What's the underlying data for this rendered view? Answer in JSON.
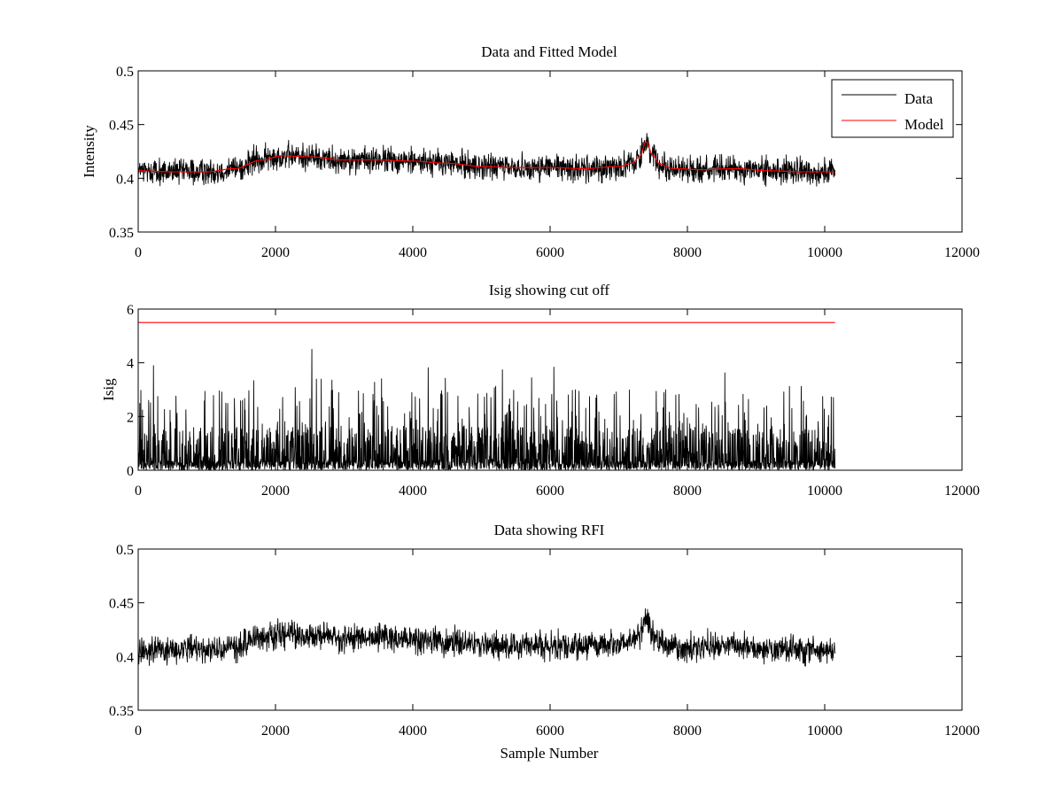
{
  "chart_data": [
    {
      "type": "line",
      "title": "Data and Fitted Model",
      "xlabel": "",
      "ylabel": "Intensity",
      "xlim": [
        0,
        12000
      ],
      "ylim": [
        0.35,
        0.5
      ],
      "xticks": [
        0,
        2000,
        4000,
        6000,
        8000,
        10000,
        12000
      ],
      "xtick_labels": [
        "0",
        "2000",
        "4000",
        "6000",
        "8000",
        "10000",
        "12000"
      ],
      "yticks": [
        0.35,
        0.4,
        0.45,
        0.5
      ],
      "ytick_labels": [
        "0.35",
        "0.4",
        "0.45",
        "0.5"
      ],
      "grid": false,
      "legend": {
        "position": "top-right",
        "entries": [
          "Data",
          "Model"
        ]
      },
      "series": [
        {
          "name": "Data",
          "color": "#000000",
          "style": "noisy",
          "x": [
            0,
            500,
            1000,
            1400,
            1800,
            2100,
            2500,
            3000,
            3500,
            4000,
            4500,
            5000,
            5500,
            6000,
            6500,
            7000,
            7200,
            7300,
            7400,
            7500,
            7600,
            7800,
            8200,
            8700,
            9200,
            9700,
            10150
          ],
          "y": [
            0.407,
            0.406,
            0.406,
            0.409,
            0.417,
            0.421,
            0.42,
            0.417,
            0.417,
            0.416,
            0.414,
            0.411,
            0.41,
            0.41,
            0.409,
            0.411,
            0.414,
            0.42,
            0.434,
            0.421,
            0.413,
            0.409,
            0.408,
            0.409,
            0.407,
            0.406,
            0.406
          ],
          "noise_amplitude": 0.006,
          "x_range": [
            0,
            10150
          ]
        },
        {
          "name": "Model",
          "color": "#ff0000",
          "style": "smooth",
          "x": [
            0,
            500,
            1000,
            1400,
            1800,
            2100,
            2500,
            3000,
            3500,
            4000,
            4500,
            5000,
            5500,
            6000,
            6500,
            7000,
            7200,
            7300,
            7400,
            7500,
            7600,
            7800,
            8200,
            8700,
            9200,
            9700,
            10150
          ],
          "y": [
            0.407,
            0.406,
            0.406,
            0.409,
            0.417,
            0.421,
            0.42,
            0.417,
            0.417,
            0.416,
            0.414,
            0.411,
            0.41,
            0.41,
            0.409,
            0.411,
            0.414,
            0.42,
            0.434,
            0.421,
            0.413,
            0.409,
            0.408,
            0.409,
            0.407,
            0.406,
            0.406
          ],
          "x_range": [
            0,
            10150
          ]
        }
      ]
    },
    {
      "type": "line",
      "title": "Isig showing cut off",
      "xlabel": "",
      "ylabel": "Isig",
      "xlim": [
        0,
        12000
      ],
      "ylim": [
        0,
        6
      ],
      "xticks": [
        0,
        2000,
        4000,
        6000,
        8000,
        10000,
        12000
      ],
      "xtick_labels": [
        "0",
        "2000",
        "4000",
        "6000",
        "8000",
        "10000",
        "12000"
      ],
      "yticks": [
        0,
        2,
        4,
        6
      ],
      "ytick_labels": [
        "0",
        "2",
        "4",
        "6"
      ],
      "grid": false,
      "series": [
        {
          "color": "#000000",
          "style": "spiky",
          "x_range": [
            0,
            10150
          ],
          "typical_max": 3.0,
          "peak": {
            "x": 2530,
            "y": 4.5
          }
        },
        {
          "color": "#ff0000",
          "style": "constant",
          "x": [
            0,
            10150
          ],
          "y": [
            5.5,
            5.5
          ]
        }
      ]
    },
    {
      "type": "line",
      "title": "Data showing RFI",
      "xlabel": "Sample Number",
      "ylabel": "",
      "xlim": [
        0,
        12000
      ],
      "ylim": [
        0.35,
        0.5
      ],
      "xticks": [
        0,
        2000,
        4000,
        6000,
        8000,
        10000,
        12000
      ],
      "xtick_labels": [
        "0",
        "2000",
        "4000",
        "6000",
        "8000",
        "10000",
        "12000"
      ],
      "yticks": [
        0.35,
        0.4,
        0.45,
        0.5
      ],
      "ytick_labels": [
        "0.35",
        "0.4",
        "0.45",
        "0.5"
      ],
      "grid": false,
      "series": [
        {
          "color": "#000000",
          "style": "noisy",
          "x": [
            0,
            500,
            1000,
            1400,
            1800,
            2100,
            2500,
            3000,
            3500,
            4000,
            4500,
            5000,
            5500,
            6000,
            6500,
            7000,
            7200,
            7300,
            7400,
            7500,
            7600,
            7800,
            8200,
            8700,
            9200,
            9700,
            10150
          ],
          "y": [
            0.407,
            0.406,
            0.406,
            0.409,
            0.417,
            0.421,
            0.42,
            0.417,
            0.417,
            0.416,
            0.414,
            0.411,
            0.41,
            0.41,
            0.409,
            0.411,
            0.414,
            0.42,
            0.434,
            0.421,
            0.413,
            0.409,
            0.408,
            0.409,
            0.407,
            0.406,
            0.406
          ],
          "noise_amplitude": 0.006,
          "x_range": [
            0,
            10150
          ]
        }
      ]
    }
  ]
}
